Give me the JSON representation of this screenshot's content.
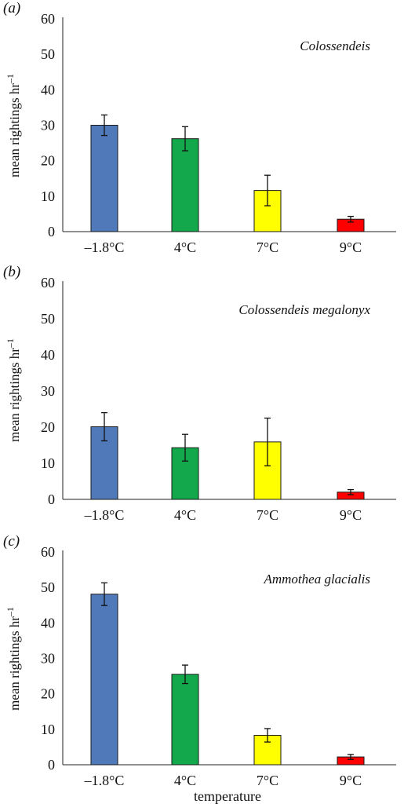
{
  "chart_data": [
    {
      "type": "bar",
      "panel_label": "(a)",
      "title": "Colossendeis",
      "xlabel": "",
      "ylabel": "mean rightings hr",
      "ylabel_superscript": "–1",
      "categories": [
        "–1.8°C",
        "4°C",
        "7°C",
        "9°C"
      ],
      "values": [
        30.0,
        26.2,
        11.6,
        3.5
      ],
      "errors": [
        2.9,
        3.4,
        4.3,
        0.8
      ],
      "colors": [
        "#4f79b8",
        "#12a84b",
        "#ffff00",
        "#ff0000"
      ],
      "ylim": [
        0,
        60
      ],
      "yticks": [
        "0",
        "10",
        "20",
        "30",
        "40",
        "50",
        "60"
      ],
      "grid": false,
      "legend": "none"
    },
    {
      "type": "bar",
      "panel_label": "(b)",
      "title": "Colossendeis megalonyx",
      "xlabel": "",
      "ylabel": "mean rightings hr",
      "ylabel_superscript": "–1",
      "categories": [
        "–1.8°C",
        "4°C",
        "7°C",
        "9°C"
      ],
      "values": [
        20.1,
        14.3,
        15.9,
        2.0
      ],
      "errors": [
        3.9,
        3.7,
        6.6,
        0.7
      ],
      "colors": [
        "#4f79b8",
        "#12a84b",
        "#ffff00",
        "#ff0000"
      ],
      "ylim": [
        0,
        60
      ],
      "yticks": [
        "0",
        "10",
        "20",
        "30",
        "40",
        "50",
        "60"
      ],
      "grid": false,
      "legend": "none"
    },
    {
      "type": "bar",
      "panel_label": "(c)",
      "title": "Ammothea glacialis",
      "xlabel": "temperature",
      "ylabel": "mean rightings hr",
      "ylabel_superscript": "–1",
      "categories": [
        "–1.8°C",
        "4°C",
        "7°C",
        "9°C"
      ],
      "values": [
        48.1,
        25.5,
        8.3,
        2.2
      ],
      "errors": [
        3.2,
        2.6,
        1.9,
        0.7
      ],
      "colors": [
        "#4f79b8",
        "#12a84b",
        "#ffff00",
        "#ff0000"
      ],
      "ylim": [
        0,
        60
      ],
      "yticks": [
        "0",
        "10",
        "20",
        "30",
        "40",
        "50",
        "60"
      ],
      "grid": false,
      "legend": "none"
    }
  ]
}
